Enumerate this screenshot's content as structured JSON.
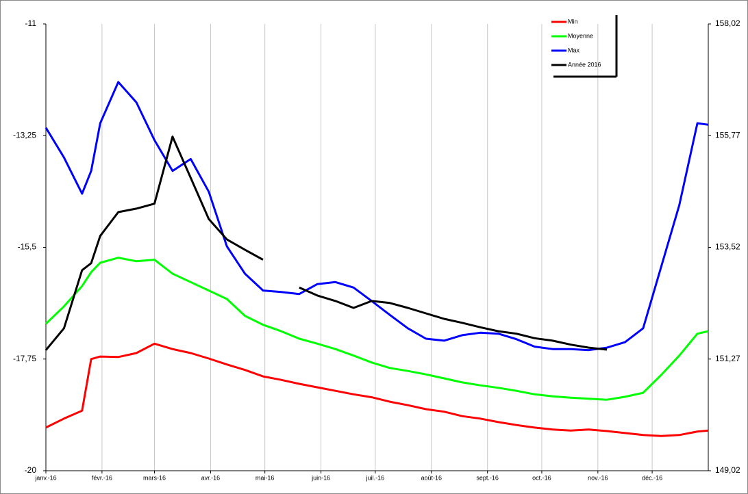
{
  "chart_data": {
    "type": "line",
    "x": [
      0,
      10,
      20,
      25,
      30,
      40,
      50,
      60,
      70,
      80,
      90,
      100,
      110,
      120,
      130,
      140,
      150,
      160,
      170,
      180,
      190,
      200,
      210,
      220,
      230,
      240,
      250,
      260,
      270,
      280,
      290,
      300,
      310,
      320,
      330,
      340,
      350,
      360,
      366
    ],
    "series": [
      {
        "name": "Min",
        "color": "#ff0000",
        "values": [
          -19.13,
          -18.95,
          -18.79,
          -17.75,
          -17.7,
          -17.71,
          -17.63,
          -17.44,
          -17.55,
          -17.63,
          -17.74,
          -17.86,
          -17.97,
          -18.1,
          -18.17,
          -18.25,
          -18.32,
          -18.39,
          -18.46,
          -18.52,
          -18.61,
          -18.68,
          -18.76,
          -18.81,
          -18.9,
          -18.95,
          -19.02,
          -19.08,
          -19.13,
          -19.17,
          -19.19,
          -19.17,
          -19.2,
          -19.24,
          -19.28,
          -19.3,
          -19.28,
          -19.21,
          -19.19
        ]
      },
      {
        "name": "Moyenne",
        "color": "#00ff00",
        "values": [
          -17.04,
          -16.69,
          -16.28,
          -16.0,
          -15.81,
          -15.71,
          -15.78,
          -15.75,
          -16.03,
          -16.2,
          -16.37,
          -16.54,
          -16.88,
          -17.06,
          -17.19,
          -17.34,
          -17.44,
          -17.55,
          -17.68,
          -17.82,
          -17.93,
          -17.99,
          -18.06,
          -18.14,
          -18.22,
          -18.28,
          -18.33,
          -18.39,
          -18.46,
          -18.5,
          -18.53,
          -18.55,
          -18.57,
          -18.51,
          -18.43,
          -18.07,
          -17.68,
          -17.24,
          -17.19
        ]
      },
      {
        "name": "Max",
        "color": "#0000ff",
        "values": [
          -13.09,
          -13.69,
          -14.42,
          -13.96,
          -13.0,
          -12.17,
          -12.58,
          -13.34,
          -13.96,
          -13.72,
          -14.38,
          -15.48,
          -16.03,
          -16.37,
          -16.4,
          -16.44,
          -16.24,
          -16.2,
          -16.31,
          -16.58,
          -16.86,
          -17.13,
          -17.34,
          -17.38,
          -17.27,
          -17.22,
          -17.24,
          -17.35,
          -17.5,
          -17.55,
          -17.55,
          -17.57,
          -17.52,
          -17.41,
          -17.13,
          -15.89,
          -14.65,
          -13.0,
          -13.03
        ]
      },
      {
        "name": "Année 2016",
        "color": "#000000",
        "values": [
          -17.57,
          -17.13,
          -15.96,
          -15.82,
          -15.27,
          -14.79,
          -14.72,
          -14.62,
          -13.27,
          -14.1,
          -14.93,
          -15.34,
          -15.55,
          -15.75,
          null,
          -16.31,
          -16.47,
          -16.58,
          -16.72,
          -16.58,
          -16.62,
          -16.72,
          -16.83,
          -16.94,
          -17.02,
          -17.11,
          -17.19,
          -17.24,
          -17.33,
          -17.38,
          -17.46,
          -17.52,
          -17.56,
          null,
          null,
          null,
          null,
          null,
          null
        ]
      }
    ],
    "xlim": [
      0,
      366
    ],
    "xticks": [
      {
        "value": 0,
        "label": "janv.-16"
      },
      {
        "value": 31,
        "label": "févr.-16"
      },
      {
        "value": 60,
        "label": "mars-16"
      },
      {
        "value": 91,
        "label": "avr.-16"
      },
      {
        "value": 121,
        "label": "mai-16"
      },
      {
        "value": 152,
        "label": "juin-16"
      },
      {
        "value": 182,
        "label": "juil.-16"
      },
      {
        "value": 213,
        "label": "août-16"
      },
      {
        "value": 244,
        "label": "sept.-16"
      },
      {
        "value": 274,
        "label": "oct.-16"
      },
      {
        "value": 305,
        "label": "nov.-16"
      },
      {
        "value": 335,
        "label": "déc.-16"
      }
    ],
    "ylim": [
      -20,
      -11
    ],
    "yticks": [
      -20,
      {
        "value": -17.75,
        "label": "-17,75"
      },
      {
        "value": -15.5,
        "label": "-15,5"
      },
      {
        "value": -13.25,
        "label": "-13,25"
      },
      -11
    ],
    "y2lim": [
      149.02,
      158.02
    ],
    "y2ticks": [
      {
        "value": 149.02,
        "label": "149,02"
      },
      {
        "value": 151.27,
        "label": "151,27"
      },
      {
        "value": 153.52,
        "label": "153,52"
      },
      {
        "value": 155.77,
        "label": "155,77"
      },
      {
        "value": 158.02,
        "label": "158,02"
      }
    ],
    "grid": "x",
    "legend": "top-right"
  }
}
